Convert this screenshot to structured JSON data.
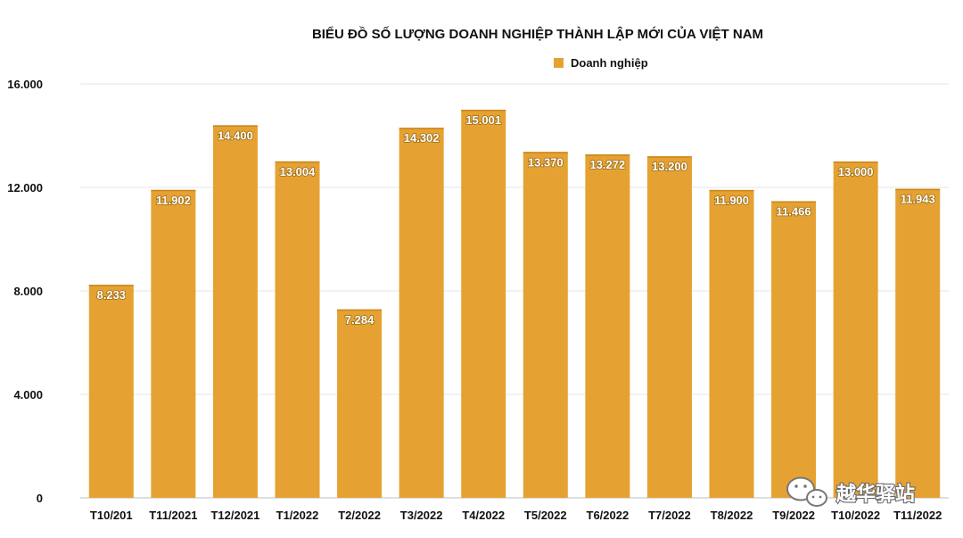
{
  "chart_data": {
    "type": "bar",
    "title": "BIỂU ĐỒ SỐ LƯỢNG DOANH NGHIỆP THÀNH LẬP MỚI CỦA VIỆT NAM",
    "categories": [
      "T10/201",
      "T11/2021",
      "T12/2021",
      "T1/2022",
      "T2/2022",
      "T3/2022",
      "T4/2022",
      "T5/2022",
      "T6/2022",
      "T7/2022",
      "T8/2022",
      "T9/2022",
      "T10/2022",
      "T11/2022"
    ],
    "series": [
      {
        "name": "Doanh nghiệp",
        "values": [
          8233,
          11902,
          14400,
          13004,
          7284,
          14302,
          15001,
          13370,
          13272,
          13200,
          11900,
          11466,
          13000,
          11943
        ],
        "labels": [
          "8.233",
          "11.902",
          "14.400",
          "13.004",
          "7.284",
          "14.302",
          "15.001",
          "13.370",
          "13.272",
          "13.200",
          "11.900",
          "11.466",
          "13.000",
          "11.943"
        ],
        "color": "#E5A232"
      }
    ],
    "yticks": [
      {
        "value": 0,
        "label": "0"
      },
      {
        "value": 4000,
        "label": "4.000"
      },
      {
        "value": 8000,
        "label": "8.000"
      },
      {
        "value": 12000,
        "label": "12.000"
      },
      {
        "value": 16000,
        "label": "16.000"
      }
    ],
    "ylim": [
      0,
      16000
    ],
    "xlabel": "",
    "ylabel": "",
    "legend_position": "top-center",
    "grid": true,
    "gridline_color": "#e6e6e6"
  },
  "watermark": {
    "text": "越华驿站",
    "icon": "wechat-icon"
  }
}
